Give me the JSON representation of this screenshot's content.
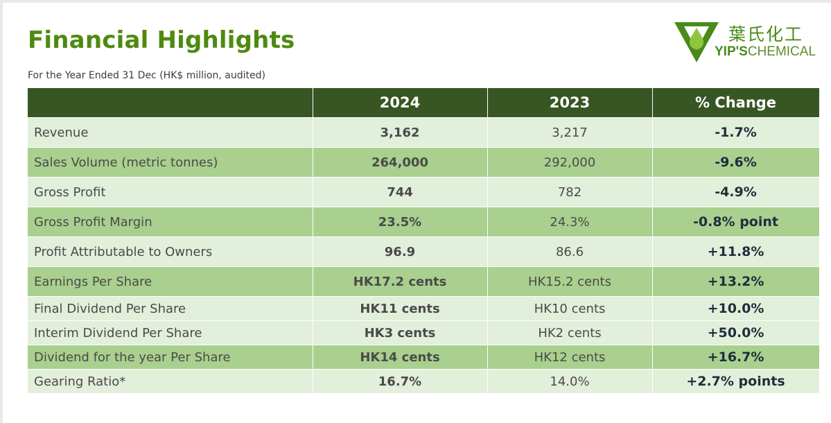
{
  "title": "Financial Highlights",
  "subtitle": "For the Year Ended 31 Dec (HK$ million, audited)",
  "logo": {
    "chinese": "葉氏化工",
    "english_bold": "YIP'S",
    "english_thin": "CHEMICAL",
    "colors": {
      "green": "#4a8a1a",
      "drop": "#8dc63f"
    }
  },
  "colors": {
    "header_bg": "#375623",
    "row_light": "#e2efda",
    "row_dark": "#a9d08e",
    "title": "#4f8a10"
  },
  "table": {
    "headers": [
      "",
      "2024",
      "2023",
      "% Change"
    ],
    "rows": [
      {
        "label": "Revenue",
        "y2024": "3,162",
        "y2023": "3,217",
        "change": "-1.7%",
        "shade": "light"
      },
      {
        "label": "Sales Volume (metric tonnes)",
        "y2024": "264,000",
        "y2023": "292,000",
        "change": "-9.6%",
        "shade": "dark"
      },
      {
        "label": "Gross Profit",
        "y2024": "744",
        "y2023": "782",
        "change": "-4.9%",
        "shade": "light"
      },
      {
        "label": "Gross Profit Margin",
        "y2024": "23.5%",
        "y2023": "24.3%",
        "change": "-0.8% point",
        "shade": "dark"
      },
      {
        "label": "Profit Attributable to Owners",
        "y2024": "96.9",
        "y2023": "86.6",
        "change": "+11.8%",
        "shade": "light"
      },
      {
        "label": "Earnings Per Share",
        "y2024": "HK17.2 cents",
        "y2023": "HK15.2 cents",
        "change": "+13.2%",
        "shade": "dark"
      },
      {
        "label": "Final Dividend Per Share",
        "y2024": "HK11 cents",
        "y2023": "HK10 cents",
        "change": "+10.0%",
        "shade": "light"
      },
      {
        "label": "Interim Dividend Per Share",
        "y2024": "HK3 cents",
        "y2023": "HK2 cents",
        "change": "+50.0%",
        "shade": "light"
      },
      {
        "label": "Dividend for the year Per Share",
        "y2024": "HK14 cents",
        "y2023": "HK12 cents",
        "change": "+16.7%",
        "shade": "dark"
      },
      {
        "label": "Gearing Ratio*",
        "y2024": "16.7%",
        "y2023": "14.0%",
        "change": "+2.7% points",
        "shade": "light"
      }
    ]
  }
}
